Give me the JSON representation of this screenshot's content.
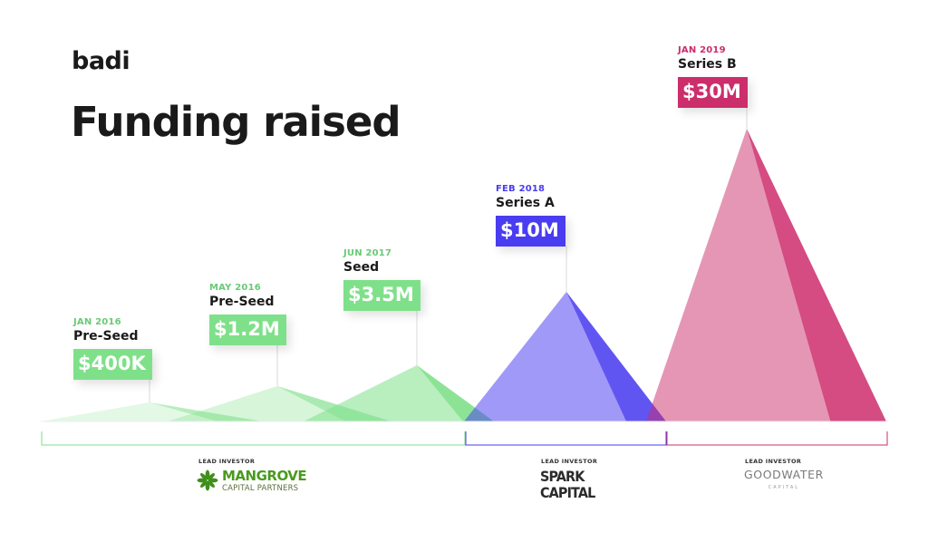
{
  "brand": "badi",
  "title": "Funding raised",
  "colors": {
    "light_green": "#7fe08a",
    "green": "#79e08a",
    "blue": "#4a3cf0",
    "pink": "#cc2d6b"
  },
  "chart_data": {
    "type": "area",
    "title": "Funding raised",
    "rounds": [
      {
        "date": "JAN 2016",
        "round": "Pre-Seed",
        "amount_label": "$400K",
        "amount_musd": 0.4,
        "color": "#7fe08a",
        "date_color": "#6ac976"
      },
      {
        "date": "MAY 2016",
        "round": "Pre-Seed",
        "amount_label": "$1.2M",
        "amount_musd": 1.2,
        "color": "#7fe08a",
        "date_color": "#6ac976"
      },
      {
        "date": "JUN 2017",
        "round": "Seed",
        "amount_label": "$3.5M",
        "amount_musd": 3.5,
        "color": "#7fe08a",
        "date_color": "#6ac976"
      },
      {
        "date": "FEB 2018",
        "round": "Series A",
        "amount_label": "$10M",
        "amount_musd": 10,
        "color": "#4a3cf0",
        "date_color": "#4a3cf0"
      },
      {
        "date": "JAN 2019",
        "round": "Series B",
        "amount_label": "$30M",
        "amount_musd": 30,
        "color": "#cc2d6b",
        "date_color": "#cc2d6b"
      }
    ]
  },
  "investors": [
    {
      "label": "LEAD INVESTOR",
      "name_line1": "MANGROVE",
      "name_line2": "CAPITAL PARTNERS",
      "color": "#79e08a"
    },
    {
      "label": "LEAD INVESTOR",
      "name_line1": "SPARK",
      "name_line2": "CAPITAL",
      "color": "#4a3cf0"
    },
    {
      "label": "LEAD INVESTOR",
      "name_line1": "GOODWATER",
      "name_line2": "CAPITAL",
      "color": "#cc2d6b"
    }
  ]
}
